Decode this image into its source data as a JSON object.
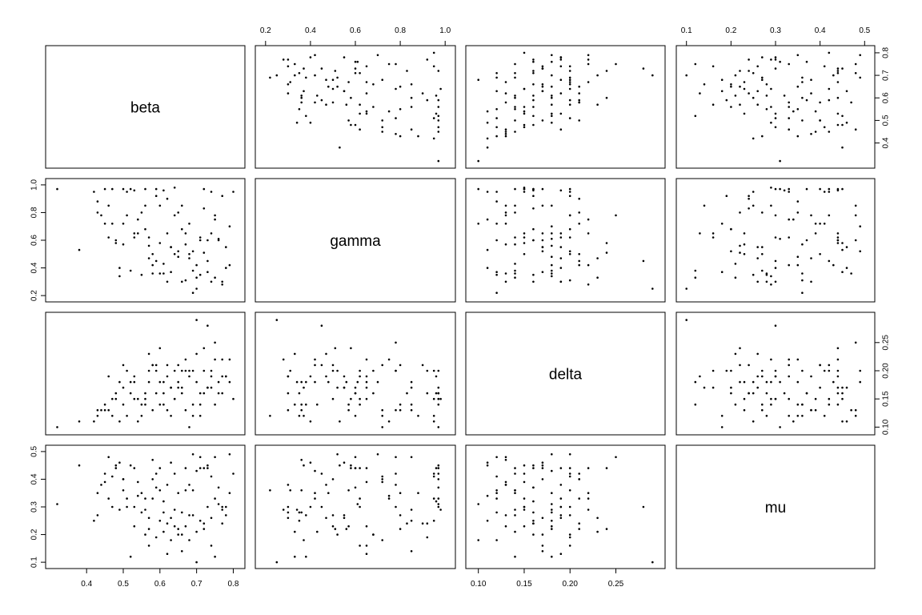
{
  "chart_data": {
    "type": "scatter",
    "subtype": "pairs-matrix",
    "variables": [
      "beta",
      "gamma",
      "delta",
      "mu"
    ],
    "ranges": {
      "beta": [
        0.31,
        0.81
      ],
      "gamma": [
        0.19,
        1.01
      ],
      "delta": [
        0.095,
        0.295
      ],
      "mu": [
        0.095,
        0.505
      ]
    },
    "ticks": {
      "beta": [
        "0.4",
        "0.5",
        "0.6",
        "0.7",
        "0.8"
      ],
      "gamma": [
        "0.2",
        "0.4",
        "0.6",
        "0.8",
        "1.0"
      ],
      "delta": [
        "0.10",
        "0.15",
        "0.20",
        "0.25"
      ],
      "mu": [
        "0.1",
        "0.2",
        "0.3",
        "0.4",
        "0.5"
      ]
    },
    "observations": {
      "beta": [
        0.32,
        0.38,
        0.42,
        0.43,
        0.44,
        0.45,
        0.46,
        0.47,
        0.47,
        0.48,
        0.49,
        0.5,
        0.5,
        0.51,
        0.52,
        0.52,
        0.53,
        0.53,
        0.54,
        0.55,
        0.56,
        0.56,
        0.57,
        0.57,
        0.58,
        0.58,
        0.59,
        0.59,
        0.6,
        0.6,
        0.61,
        0.61,
        0.62,
        0.62,
        0.63,
        0.63,
        0.64,
        0.64,
        0.65,
        0.65,
        0.66,
        0.66,
        0.67,
        0.67,
        0.68,
        0.68,
        0.69,
        0.69,
        0.7,
        0.7,
        0.71,
        0.71,
        0.72,
        0.72,
        0.73,
        0.73,
        0.74,
        0.74,
        0.75,
        0.75,
        0.76,
        0.77,
        0.77,
        0.78,
        0.79,
        0.79,
        0.8,
        0.43,
        0.46,
        0.49,
        0.51,
        0.54,
        0.57,
        0.6,
        0.63,
        0.66,
        0.69,
        0.72,
        0.75,
        0.78,
        0.45,
        0.48,
        0.53,
        0.58,
        0.62,
        0.65,
        0.68,
        0.71,
        0.74,
        0.77,
        0.5,
        0.55,
        0.61,
        0.64,
        0.67,
        0.7,
        0.73,
        0.76,
        0.56,
        0.59
      ],
      "gamma": [
        0.97,
        0.53,
        0.95,
        0.88,
        0.78,
        0.97,
        0.85,
        0.97,
        0.72,
        0.6,
        0.34,
        0.97,
        0.57,
        0.95,
        0.97,
        0.38,
        0.62,
        0.96,
        0.75,
        0.35,
        0.97,
        0.68,
        0.62,
        0.56,
        0.5,
        0.36,
        0.92,
        0.97,
        0.58,
        0.85,
        0.43,
        0.96,
        0.9,
        0.65,
        0.55,
        0.37,
        0.98,
        0.78,
        0.48,
        0.8,
        0.85,
        0.3,
        0.57,
        0.65,
        0.72,
        0.47,
        0.52,
        0.38,
        0.42,
        0.25,
        0.35,
        0.6,
        0.97,
        0.51,
        0.45,
        0.37,
        0.95,
        0.3,
        0.78,
        0.33,
        0.61,
        0.28,
        0.92,
        0.55,
        0.42,
        0.7,
        0.95,
        0.8,
        0.62,
        0.4,
        0.78,
        0.65,
        0.47,
        0.36,
        0.55,
        0.68,
        0.22,
        0.83,
        0.75,
        0.4,
        0.72,
        0.58,
        0.65,
        0.42,
        0.3,
        0.52,
        0.5,
        0.62,
        0.65,
        0.3,
        0.72,
        0.8,
        0.36,
        0.5,
        0.31,
        0.33,
        0.6,
        0.6,
        0.85,
        0.45
      ],
      "delta": [
        0.1,
        0.11,
        0.11,
        0.12,
        0.13,
        0.14,
        0.13,
        0.15,
        0.12,
        0.16,
        0.18,
        0.17,
        0.14,
        0.12,
        0.16,
        0.18,
        0.15,
        0.19,
        0.11,
        0.12,
        0.15,
        0.16,
        0.2,
        0.18,
        0.21,
        0.13,
        0.2,
        0.16,
        0.24,
        0.18,
        0.14,
        0.16,
        0.21,
        0.19,
        0.17,
        0.12,
        0.15,
        0.2,
        0.18,
        0.21,
        0.17,
        0.16,
        0.13,
        0.22,
        0.1,
        0.19,
        0.2,
        0.14,
        0.18,
        0.29,
        0.16,
        0.12,
        0.2,
        0.24,
        0.28,
        0.17,
        0.2,
        0.19,
        0.25,
        0.14,
        0.18,
        0.22,
        0.16,
        0.19,
        0.22,
        0.18,
        0.15,
        0.13,
        0.19,
        0.11,
        0.2,
        0.15,
        0.23,
        0.14,
        0.17,
        0.2,
        0.12,
        0.16,
        0.22,
        0.19,
        0.13,
        0.15,
        0.18,
        0.21,
        0.13,
        0.17,
        0.2,
        0.14,
        0.17,
        0.19,
        0.21,
        0.14,
        0.18,
        0.15,
        0.2,
        0.23,
        0.17,
        0.16,
        0.14,
        0.21
      ],
      "mu": [
        0.31,
        0.45,
        0.25,
        0.35,
        0.38,
        0.42,
        0.48,
        0.3,
        0.41,
        0.44,
        0.29,
        0.4,
        0.36,
        0.33,
        0.45,
        0.12,
        0.3,
        0.44,
        0.34,
        0.28,
        0.33,
        0.2,
        0.16,
        0.22,
        0.4,
        0.47,
        0.19,
        0.37,
        0.44,
        0.25,
        0.21,
        0.32,
        0.24,
        0.13,
        0.26,
        0.18,
        0.29,
        0.42,
        0.35,
        0.22,
        0.14,
        0.28,
        0.23,
        0.44,
        0.18,
        0.38,
        0.49,
        0.27,
        0.43,
        0.1,
        0.25,
        0.48,
        0.44,
        0.22,
        0.3,
        0.45,
        0.41,
        0.26,
        0.48,
        0.12,
        0.31,
        0.29,
        0.24,
        0.27,
        0.35,
        0.49,
        0.42,
        0.27,
        0.33,
        0.46,
        0.3,
        0.39,
        0.26,
        0.36,
        0.46,
        0.2,
        0.36,
        0.24,
        0.33,
        0.3,
        0.39,
        0.45,
        0.23,
        0.33,
        0.38,
        0.2,
        0.27,
        0.44,
        0.16,
        0.3,
        0.4,
        0.35,
        0.28,
        0.23,
        0.36,
        0.21,
        0.44,
        0.37,
        0.29,
        0.42
      ]
    }
  }
}
